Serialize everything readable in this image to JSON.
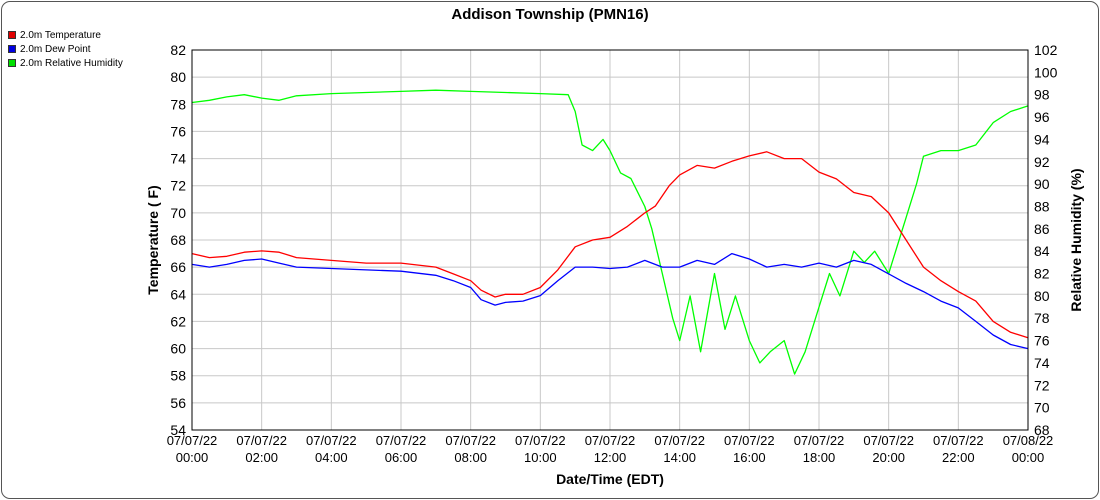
{
  "chart_data": {
    "type": "line",
    "title": "Addison Township (PMN16)",
    "xlabel": "Date/Time (EDT)",
    "ylabel_left": "Temperature ( F)",
    "ylabel_right": "Relative Humidity (%)",
    "xlim_hours": [
      0,
      24
    ],
    "ylim_left": [
      54,
      82
    ],
    "ylim_right": [
      68,
      102
    ],
    "grid": true,
    "legend_position": "top-left",
    "x_ticks": [
      {
        "date": "07/07/22",
        "time": "00:00"
      },
      {
        "date": "07/07/22",
        "time": "02:00"
      },
      {
        "date": "07/07/22",
        "time": "04:00"
      },
      {
        "date": "07/07/22",
        "time": "06:00"
      },
      {
        "date": "07/07/22",
        "time": "08:00"
      },
      {
        "date": "07/07/22",
        "time": "10:00"
      },
      {
        "date": "07/07/22",
        "time": "12:00"
      },
      {
        "date": "07/07/22",
        "time": "14:00"
      },
      {
        "date": "07/07/22",
        "time": "16:00"
      },
      {
        "date": "07/07/22",
        "time": "18:00"
      },
      {
        "date": "07/07/22",
        "time": "20:00"
      },
      {
        "date": "07/07/22",
        "time": "22:00"
      },
      {
        "date": "07/08/22",
        "time": "00:00"
      }
    ],
    "y_ticks_left": [
      "54",
      "56",
      "58",
      "60",
      "62",
      "64",
      "66",
      "68",
      "70",
      "72",
      "74",
      "76",
      "78",
      "80",
      "82"
    ],
    "y_ticks_right": [
      "68",
      "70",
      "72",
      "74",
      "76",
      "78",
      "80",
      "82",
      "84",
      "86",
      "88",
      "90",
      "92",
      "94",
      "96",
      "98",
      "100",
      "102"
    ],
    "series": [
      {
        "name": "2.0m Temperature",
        "color": "#ff0000",
        "axis": "left",
        "points": [
          [
            0,
            67.0
          ],
          [
            0.5,
            66.7
          ],
          [
            1,
            66.8
          ],
          [
            1.5,
            67.1
          ],
          [
            2,
            67.2
          ],
          [
            2.5,
            67.1
          ],
          [
            3,
            66.7
          ],
          [
            3.5,
            66.6
          ],
          [
            4,
            66.5
          ],
          [
            5,
            66.3
          ],
          [
            6,
            66.3
          ],
          [
            7,
            66.0
          ],
          [
            7.5,
            65.5
          ],
          [
            8,
            65.0
          ],
          [
            8.3,
            64.3
          ],
          [
            8.7,
            63.8
          ],
          [
            9,
            64.0
          ],
          [
            9.5,
            64.0
          ],
          [
            10,
            64.5
          ],
          [
            10.5,
            65.8
          ],
          [
            11,
            67.5
          ],
          [
            11.5,
            68.0
          ],
          [
            12,
            68.2
          ],
          [
            12.5,
            69.0
          ],
          [
            13,
            70.0
          ],
          [
            13.3,
            70.5
          ],
          [
            13.7,
            72.0
          ],
          [
            14,
            72.8
          ],
          [
            14.5,
            73.5
          ],
          [
            15,
            73.3
          ],
          [
            15.5,
            73.8
          ],
          [
            16,
            74.2
          ],
          [
            16.5,
            74.5
          ],
          [
            17,
            74.0
          ],
          [
            17.5,
            74.0
          ],
          [
            18,
            73.0
          ],
          [
            18.5,
            72.5
          ],
          [
            19,
            71.5
          ],
          [
            19.5,
            71.2
          ],
          [
            20,
            70.0
          ],
          [
            20.5,
            68.0
          ],
          [
            21,
            66.0
          ],
          [
            21.5,
            65.0
          ],
          [
            22,
            64.2
          ],
          [
            22.5,
            63.5
          ],
          [
            23,
            62.0
          ],
          [
            23.5,
            61.2
          ],
          [
            24,
            60.8
          ]
        ]
      },
      {
        "name": "2.0m Dew Point",
        "color": "#0000ff",
        "axis": "left",
        "points": [
          [
            0,
            66.2
          ],
          [
            0.5,
            66.0
          ],
          [
            1,
            66.2
          ],
          [
            1.5,
            66.5
          ],
          [
            2,
            66.6
          ],
          [
            2.5,
            66.3
          ],
          [
            3,
            66.0
          ],
          [
            4,
            65.9
          ],
          [
            5,
            65.8
          ],
          [
            6,
            65.7
          ],
          [
            7,
            65.4
          ],
          [
            7.5,
            65.0
          ],
          [
            8,
            64.5
          ],
          [
            8.3,
            63.6
          ],
          [
            8.7,
            63.2
          ],
          [
            9,
            63.4
          ],
          [
            9.5,
            63.5
          ],
          [
            10,
            63.9
          ],
          [
            10.5,
            65.0
          ],
          [
            11,
            66.0
          ],
          [
            11.5,
            66.0
          ],
          [
            12,
            65.9
          ],
          [
            12.5,
            66.0
          ],
          [
            13,
            66.5
          ],
          [
            13.5,
            66.0
          ],
          [
            14,
            66.0
          ],
          [
            14.5,
            66.5
          ],
          [
            15,
            66.2
          ],
          [
            15.5,
            67.0
          ],
          [
            16,
            66.6
          ],
          [
            16.5,
            66.0
          ],
          [
            17,
            66.2
          ],
          [
            17.5,
            66.0
          ],
          [
            18,
            66.3
          ],
          [
            18.5,
            66.0
          ],
          [
            19,
            66.5
          ],
          [
            19.5,
            66.2
          ],
          [
            20,
            65.5
          ],
          [
            20.5,
            64.8
          ],
          [
            21,
            64.2
          ],
          [
            21.5,
            63.5
          ],
          [
            22,
            63.0
          ],
          [
            22.5,
            62.0
          ],
          [
            23,
            61.0
          ],
          [
            23.5,
            60.3
          ],
          [
            24,
            60.0
          ]
        ]
      },
      {
        "name": "2.0m Relative Humidity",
        "color": "#00ff00",
        "axis": "right",
        "points": [
          [
            0,
            97.3
          ],
          [
            0.5,
            97.5
          ],
          [
            1,
            97.8
          ],
          [
            1.5,
            98.0
          ],
          [
            2,
            97.7
          ],
          [
            2.5,
            97.5
          ],
          [
            3,
            97.9
          ],
          [
            4,
            98.1
          ],
          [
            5,
            98.2
          ],
          [
            6,
            98.3
          ],
          [
            7,
            98.4
          ],
          [
            8,
            98.3
          ],
          [
            9,
            98.2
          ],
          [
            10,
            98.1
          ],
          [
            10.8,
            98.0
          ],
          [
            11,
            96.5
          ],
          [
            11.2,
            93.5
          ],
          [
            11.5,
            93.0
          ],
          [
            11.8,
            94.0
          ],
          [
            12,
            93.0
          ],
          [
            12.3,
            91.0
          ],
          [
            12.6,
            90.5
          ],
          [
            13,
            88.0
          ],
          [
            13.2,
            86.0
          ],
          [
            13.5,
            82.0
          ],
          [
            13.8,
            78.0
          ],
          [
            14,
            76.0
          ],
          [
            14.3,
            80.0
          ],
          [
            14.6,
            75.0
          ],
          [
            15,
            82.0
          ],
          [
            15.3,
            77.0
          ],
          [
            15.6,
            80.0
          ],
          [
            16,
            76.0
          ],
          [
            16.3,
            74.0
          ],
          [
            16.6,
            75.0
          ],
          [
            17,
            76.0
          ],
          [
            17.3,
            73.0
          ],
          [
            17.6,
            75.0
          ],
          [
            18,
            79.0
          ],
          [
            18.3,
            82.0
          ],
          [
            18.6,
            80.0
          ],
          [
            19,
            84.0
          ],
          [
            19.3,
            83.0
          ],
          [
            19.6,
            84.0
          ],
          [
            20,
            82.0
          ],
          [
            20.3,
            85.0
          ],
          [
            20.5,
            87.0
          ],
          [
            20.8,
            90.0
          ],
          [
            21,
            92.5
          ],
          [
            21.5,
            93.0
          ],
          [
            22,
            93.0
          ],
          [
            22.5,
            93.5
          ],
          [
            23,
            95.5
          ],
          [
            23.5,
            96.5
          ],
          [
            24,
            97.0
          ]
        ]
      }
    ]
  }
}
